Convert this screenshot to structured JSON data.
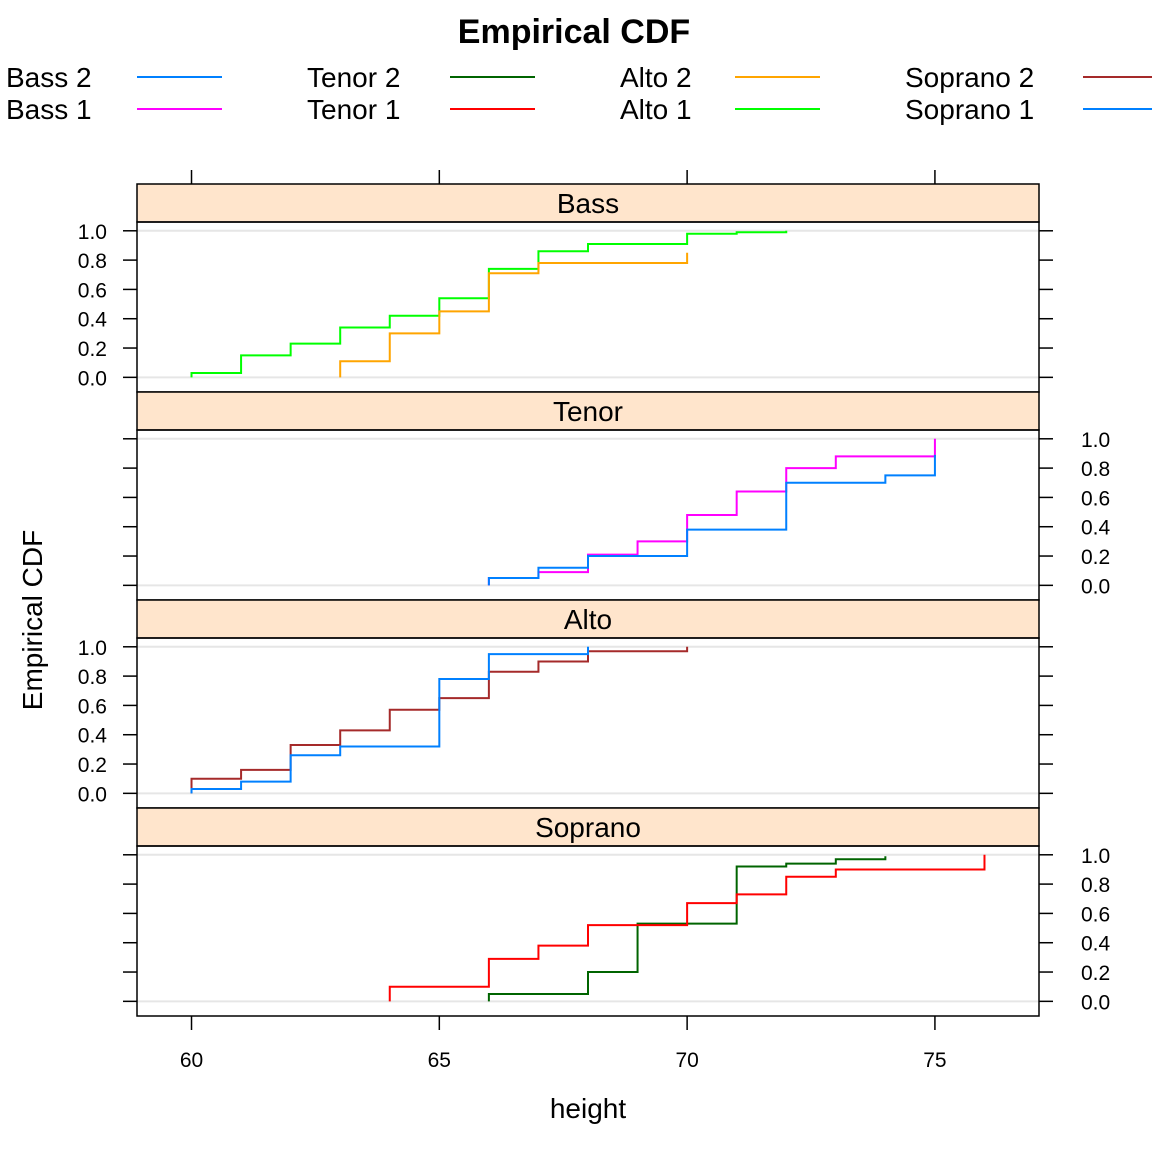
{
  "chart_data": {
    "type": "line",
    "title": "Empirical CDF",
    "xlabel": "height",
    "ylabel": "Empirical CDF",
    "xlim": [
      58.9,
      77.1
    ],
    "ylim": [
      -0.1,
      1.06
    ],
    "x_ticks": [
      "60",
      "65",
      "70",
      "75"
    ],
    "y_ticks": [
      "0.0",
      "0.2",
      "0.4",
      "0.6",
      "0.8",
      "1.0"
    ],
    "legend": [
      {
        "name": "Bass 2",
        "color": "#0080ff"
      },
      {
        "name": "Bass 1",
        "color": "#ff00ff"
      },
      {
        "name": "Tenor 2",
        "color": "#006400"
      },
      {
        "name": "Tenor 1",
        "color": "#ff0000"
      },
      {
        "name": "Alto 2",
        "color": "#ffa500"
      },
      {
        "name": "Alto 1",
        "color": "#00ff00"
      },
      {
        "name": "Soprano 2",
        "color": "#a52a2a"
      },
      {
        "name": "Soprano 1",
        "color": "#0080ff"
      }
    ],
    "panels": [
      {
        "name": "Bass",
        "series": [
          {
            "color": "#00ff00",
            "x": [
              60,
              61,
              62,
              63,
              64,
              65,
              66,
              67,
              68,
              70,
              71,
              72
            ],
            "y": [
              0.03,
              0.15,
              0.23,
              0.34,
              0.42,
              0.54,
              0.74,
              0.86,
              0.91,
              0.98,
              0.99,
              1.0
            ]
          },
          {
            "color": "#ffa500",
            "x": [
              63,
              64,
              65,
              66,
              67,
              70
            ],
            "y": [
              0.11,
              0.3,
              0.45,
              0.71,
              0.78,
              0.85
            ]
          }
        ]
      },
      {
        "name": "Tenor",
        "series": [
          {
            "color": "#ff00ff",
            "x": [
              66,
              67,
              68,
              69,
              70,
              71,
              72,
              73,
              75
            ],
            "y": [
              0.05,
              0.09,
              0.21,
              0.3,
              0.48,
              0.64,
              0.8,
              0.88,
              1.0
            ]
          },
          {
            "color": "#0080ff",
            "x": [
              66,
              67,
              68,
              70,
              72,
              74,
              75
            ],
            "y": [
              0.05,
              0.12,
              0.2,
              0.38,
              0.7,
              0.75,
              0.89
            ]
          }
        ]
      },
      {
        "name": "Alto",
        "series": [
          {
            "color": "#a52a2a",
            "x": [
              60,
              61,
              62,
              63,
              64,
              65,
              66,
              67,
              68,
              70
            ],
            "y": [
              0.1,
              0.16,
              0.33,
              0.43,
              0.57,
              0.65,
              0.83,
              0.9,
              0.97,
              1.0
            ]
          },
          {
            "color": "#0080ff",
            "x": [
              60,
              61,
              62,
              63,
              65,
              66,
              68
            ],
            "y": [
              0.03,
              0.08,
              0.26,
              0.32,
              0.78,
              0.95,
              1.0
            ]
          }
        ]
      },
      {
        "name": "Soprano",
        "series": [
          {
            "color": "#006400",
            "x": [
              66,
              68,
              69,
              71,
              72,
              73,
              74
            ],
            "y": [
              0.05,
              0.2,
              0.53,
              0.92,
              0.94,
              0.97,
              0.99
            ]
          },
          {
            "color": "#ff0000",
            "x": [
              64,
              66,
              67,
              68,
              70,
              71,
              72,
              73,
              76
            ],
            "y": [
              0.1,
              0.29,
              0.38,
              0.52,
              0.67,
              0.73,
              0.85,
              0.9,
              1.0
            ]
          }
        ]
      }
    ]
  }
}
